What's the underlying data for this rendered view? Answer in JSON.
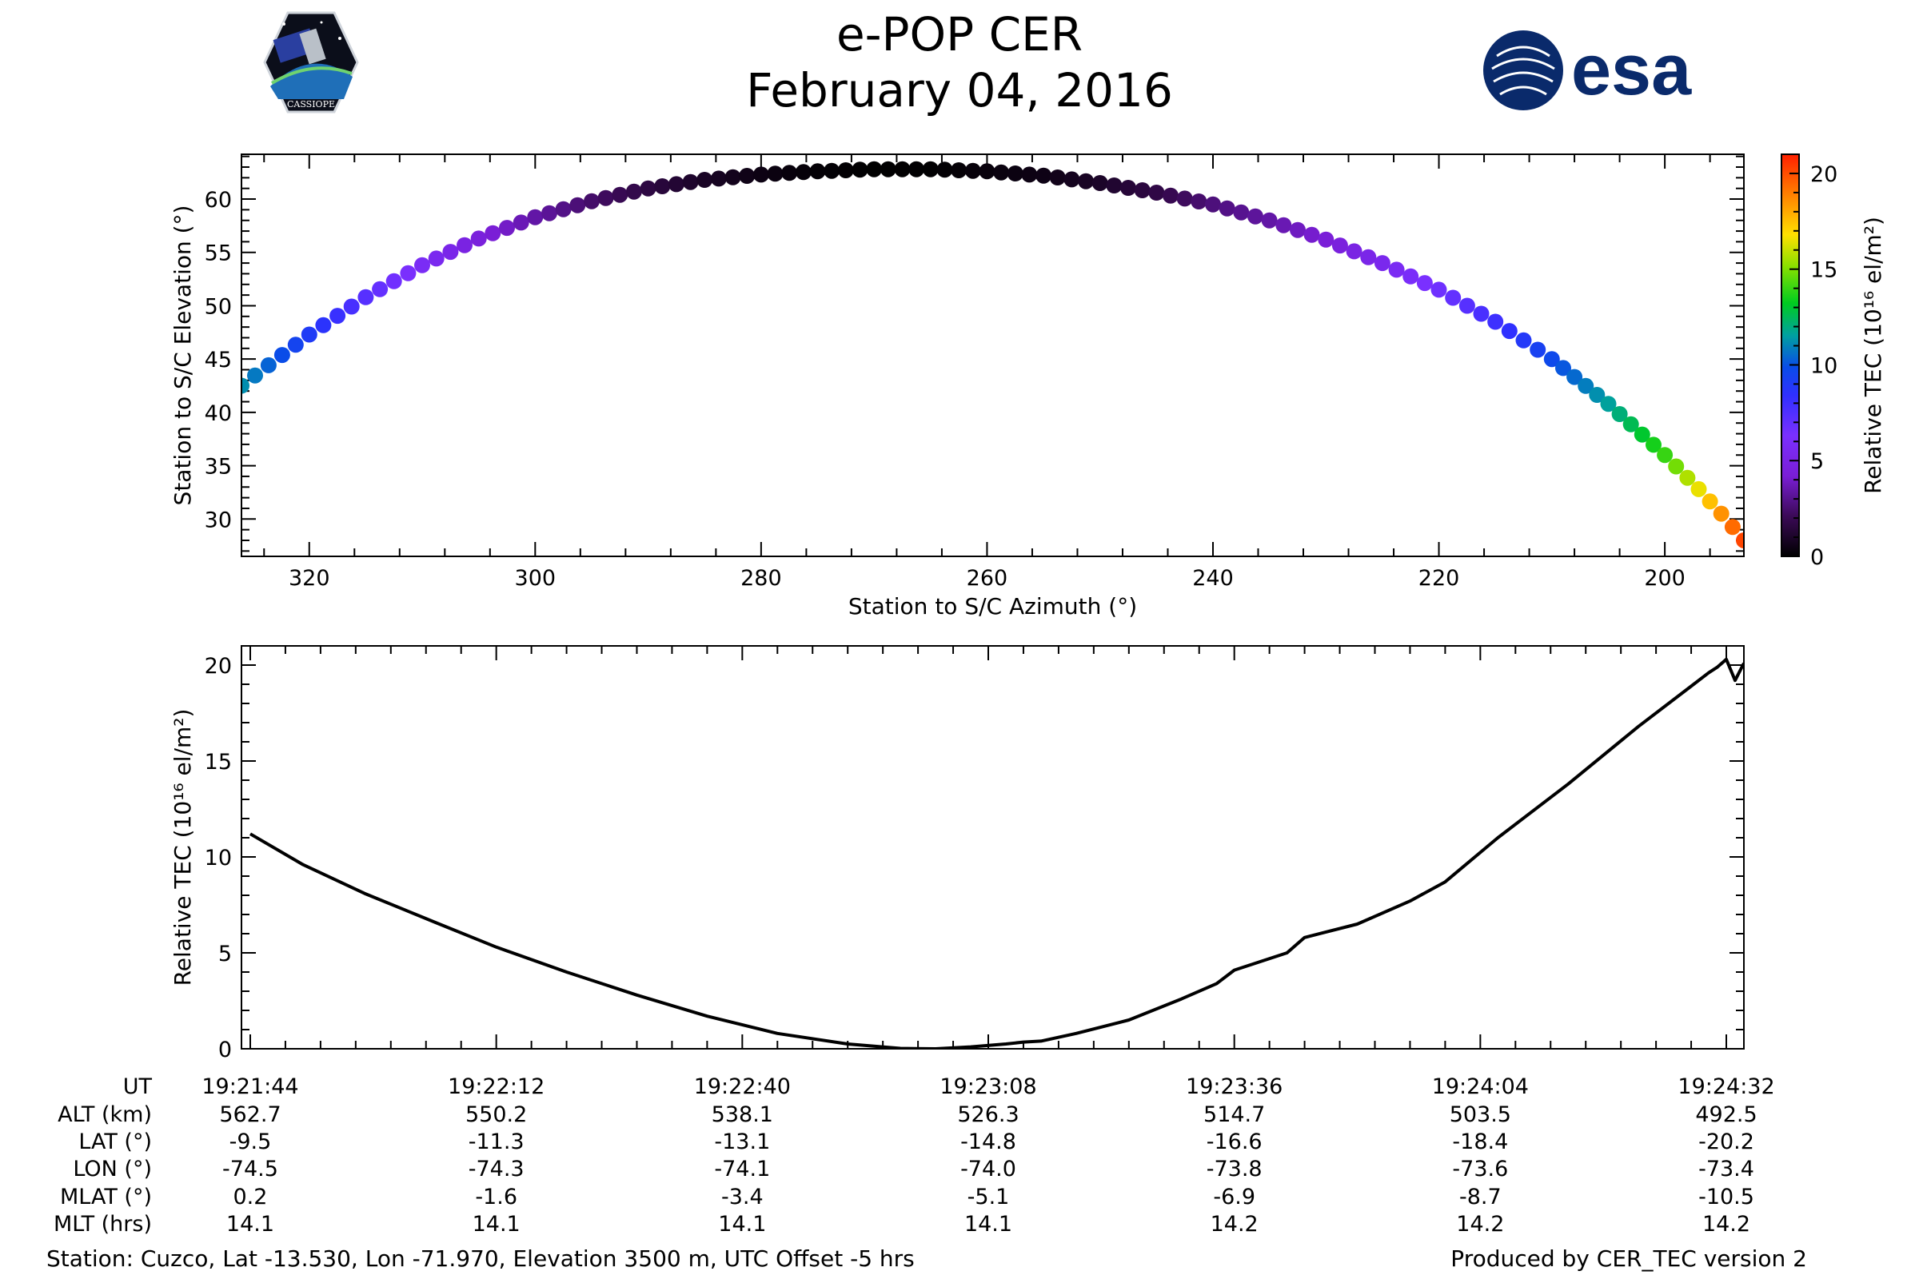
{
  "header": {
    "title": "e-POP CER",
    "date": "February 04, 2016",
    "left_logo": {
      "icon": "cassiope-mission-patch-icon",
      "text": "CASSIOPE"
    },
    "right_logo": {
      "icon": "esa-logo-icon",
      "text": "esa",
      "color": "#0a2a6b"
    }
  },
  "chart_data": [
    {
      "type": "scatter",
      "xlabel": "Station to S/C Azimuth (°)",
      "ylabel": "Station to S/C Elevation (°)",
      "xlim": [
        326,
        193
      ],
      "ylim": [
        26.5,
        64.2
      ],
      "x_reversed": true,
      "xticks": [
        320,
        300,
        280,
        260,
        240,
        220,
        200
      ],
      "yticks": [
        30,
        35,
        40,
        45,
        50,
        55,
        60
      ],
      "grid": false,
      "colormap": "gnuplot2-like (black-purple-blue-green-yellow-red)",
      "colorbar": {
        "label": "Relative TEC (10¹⁶ el/m²)",
        "range": [
          0,
          21
        ],
        "ticks": [
          0,
          5,
          10,
          15,
          20
        ]
      },
      "points": [
        {
          "az": 326.0,
          "el": 42.5,
          "tec": 11.2
        },
        {
          "az": 320.0,
          "el": 47.3,
          "tec": 9.0
        },
        {
          "az": 315.0,
          "el": 50.8,
          "tec": 7.3
        },
        {
          "az": 310.0,
          "el": 53.8,
          "tec": 5.8
        },
        {
          "az": 305.0,
          "el": 56.3,
          "tec": 4.5
        },
        {
          "az": 300.0,
          "el": 58.3,
          "tec": 3.4
        },
        {
          "az": 295.0,
          "el": 59.8,
          "tec": 2.4
        },
        {
          "az": 290.0,
          "el": 61.0,
          "tec": 1.6
        },
        {
          "az": 285.0,
          "el": 61.8,
          "tec": 0.9
        },
        {
          "az": 280.0,
          "el": 62.3,
          "tec": 0.45
        },
        {
          "az": 275.0,
          "el": 62.6,
          "tec": 0.15
        },
        {
          "az": 270.0,
          "el": 62.8,
          "tec": 0.0
        },
        {
          "az": 265.0,
          "el": 62.8,
          "tec": 0.05
        },
        {
          "az": 260.0,
          "el": 62.6,
          "tec": 0.3
        },
        {
          "az": 255.0,
          "el": 62.2,
          "tec": 0.5
        },
        {
          "az": 250.0,
          "el": 61.5,
          "tec": 1.0
        },
        {
          "az": 245.0,
          "el": 60.6,
          "tec": 1.7
        },
        {
          "az": 240.0,
          "el": 59.5,
          "tec": 2.7
        },
        {
          "az": 235.0,
          "el": 58.0,
          "tec": 3.4
        },
        {
          "az": 230.0,
          "el": 56.2,
          "tec": 4.3
        },
        {
          "az": 225.0,
          "el": 54.0,
          "tec": 5.4
        },
        {
          "az": 220.0,
          "el": 51.5,
          "tec": 6.6
        },
        {
          "az": 215.0,
          "el": 48.5,
          "tec": 8.0
        },
        {
          "az": 210.0,
          "el": 45.0,
          "tec": 9.7
        },
        {
          "az": 205.0,
          "el": 40.8,
          "tec": 11.6
        },
        {
          "az": 200.0,
          "el": 36.0,
          "tec": 14.0
        },
        {
          "az": 197.0,
          "el": 32.8,
          "tec": 16.5
        },
        {
          "az": 195.0,
          "el": 30.5,
          "tec": 18.5
        },
        {
          "az": 193.0,
          "el": 28.0,
          "tec": 20.2
        }
      ]
    },
    {
      "type": "line",
      "xlabel": "UT",
      "ylabel": "Relative TEC (10¹⁶ el/m²)",
      "xlim": [
        "19:21:43",
        "19:24:34"
      ],
      "ylim": [
        0,
        21
      ],
      "yticks": [
        0,
        5,
        10,
        15,
        20
      ],
      "xticks": [
        "19:21:44",
        "19:22:12",
        "19:22:40",
        "19:23:08",
        "19:23:36",
        "19:24:04",
        "19:24:32"
      ],
      "grid": false,
      "series": [
        {
          "color": "#000000",
          "x": [
            "19:21:44",
            "19:21:50",
            "19:21:57",
            "19:22:05",
            "19:22:12",
            "19:22:20",
            "19:22:28",
            "19:22:36",
            "19:22:44",
            "19:22:52",
            "19:22:58",
            "19:23:02",
            "19:23:06",
            "19:23:10",
            "19:23:12",
            "19:23:14",
            "19:23:18",
            "19:23:24",
            "19:23:30",
            "19:23:34",
            "19:23:36",
            "19:23:42",
            "19:23:44",
            "19:23:50",
            "19:23:56",
            "19:24:00",
            "19:24:06",
            "19:24:14",
            "19:24:22",
            "19:24:28",
            "19:24:30",
            "19:24:31",
            "19:24:32",
            "19:24:33",
            "19:24:34"
          ],
          "values": [
            11.2,
            9.6,
            8.1,
            6.6,
            5.3,
            4.0,
            2.8,
            1.7,
            0.8,
            0.25,
            0.02,
            0.0,
            0.1,
            0.25,
            0.35,
            0.4,
            0.8,
            1.5,
            2.6,
            3.4,
            4.1,
            5.0,
            5.8,
            6.5,
            7.7,
            8.7,
            11.0,
            13.8,
            16.8,
            18.9,
            19.6,
            19.9,
            20.3,
            19.2,
            20.1
          ]
        }
      ]
    }
  ],
  "table": {
    "row_labels": [
      "UT",
      "ALT (km)",
      "LAT (°)",
      "LON (°)",
      "MLAT (°)",
      "MLT (hrs)"
    ],
    "columns": [
      [
        "19:21:44",
        "562.7",
        "-9.5",
        "-74.5",
        "0.2",
        "14.1"
      ],
      [
        "19:22:12",
        "550.2",
        "-11.3",
        "-74.3",
        "-1.6",
        "14.1"
      ],
      [
        "19:22:40",
        "538.1",
        "-13.1",
        "-74.1",
        "-3.4",
        "14.1"
      ],
      [
        "19:23:08",
        "526.3",
        "-14.8",
        "-74.0",
        "-5.1",
        "14.1"
      ],
      [
        "19:23:36",
        "514.7",
        "-16.6",
        "-73.8",
        "-6.9",
        "14.2"
      ],
      [
        "19:24:04",
        "503.5",
        "-18.4",
        "-73.6",
        "-8.7",
        "14.2"
      ],
      [
        "19:24:32",
        "492.5",
        "-20.2",
        "-73.4",
        "-10.5",
        "14.2"
      ]
    ]
  },
  "footer": {
    "station": "Station: Cuzco, Lat -13.530, Lon -71.970, Elevation 3500 m, UTC Offset -5 hrs",
    "produced_by": "Produced by CER_TEC version 2"
  }
}
